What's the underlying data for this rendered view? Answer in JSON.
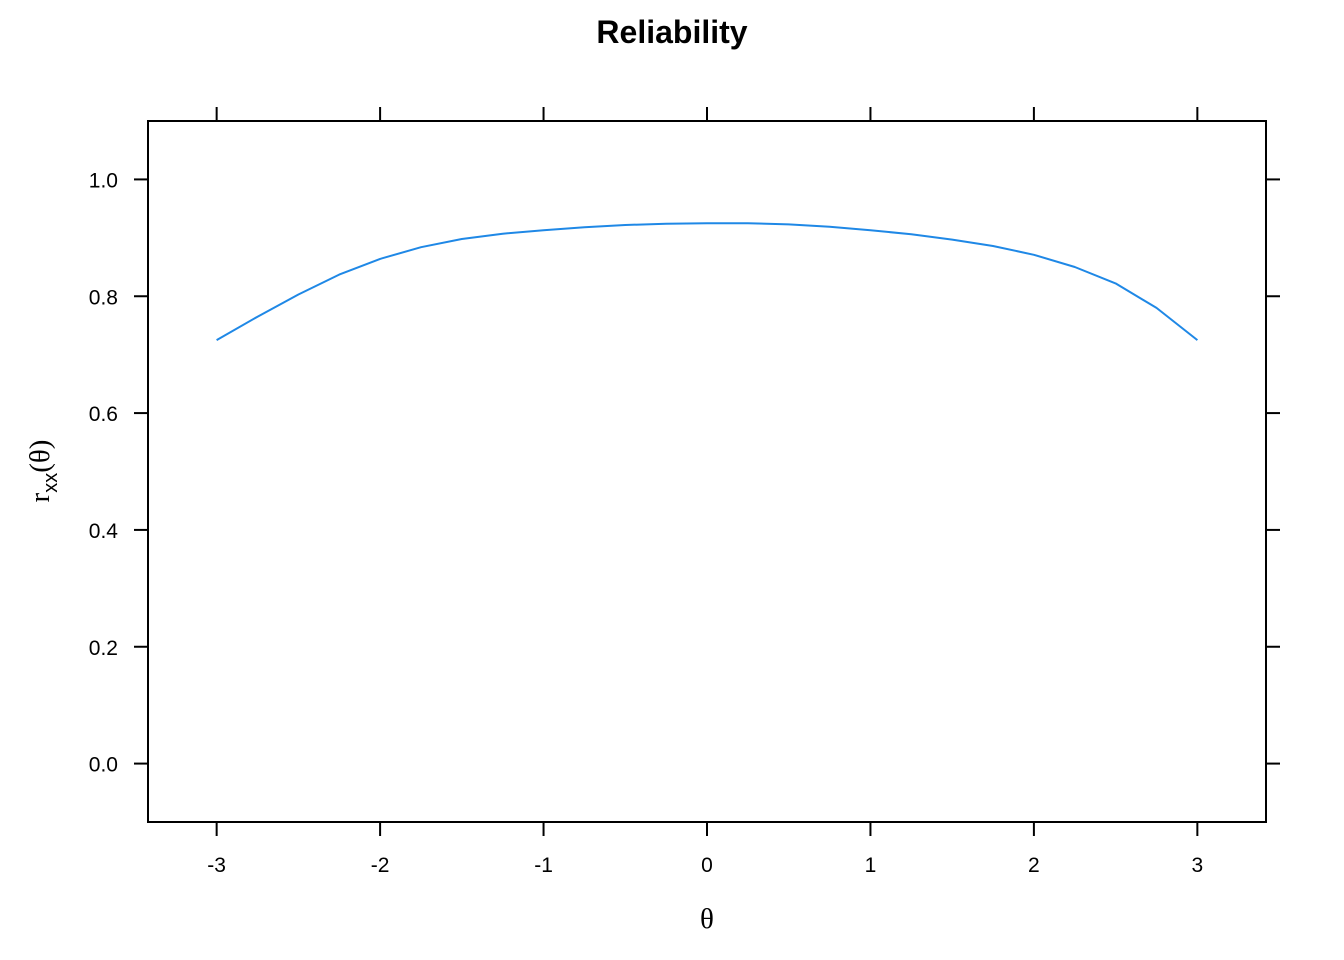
{
  "chart_data": {
    "type": "line",
    "title": "Reliability",
    "xlabel": "θ",
    "ylabel": {
      "base": "r",
      "subscript": "xx",
      "suffix": "(θ)"
    },
    "xlim": [
      -3.42,
      3.42
    ],
    "ylim": [
      -0.1,
      1.1
    ],
    "x_ticks": [
      -3,
      -2,
      -1,
      0,
      1,
      2,
      3
    ],
    "x_tick_labels": [
      "-3",
      "-2",
      "-1",
      "0",
      "1",
      "2",
      "3"
    ],
    "y_ticks": [
      0.0,
      0.2,
      0.4,
      0.6,
      0.8,
      1.0
    ],
    "y_tick_labels": [
      "0.0",
      "0.2",
      "0.4",
      "0.6",
      "0.8",
      "1.0"
    ],
    "grid": false,
    "series": [
      {
        "color": "#1f88e6",
        "x": [
          -3.0,
          -2.75,
          -2.5,
          -2.25,
          -2.0,
          -1.75,
          -1.5,
          -1.25,
          -1.0,
          -0.75,
          -0.5,
          -0.25,
          0.0,
          0.25,
          0.5,
          0.75,
          1.0,
          1.25,
          1.5,
          1.75,
          2.0,
          2.25,
          2.5,
          2.75,
          3.0
        ],
        "y": [
          0.725,
          0.765,
          0.803,
          0.837,
          0.864,
          0.884,
          0.898,
          0.907,
          0.913,
          0.918,
          0.922,
          0.924,
          0.925,
          0.925,
          0.923,
          0.919,
          0.913,
          0.906,
          0.897,
          0.886,
          0.871,
          0.85,
          0.822,
          0.78,
          0.725
        ]
      }
    ]
  }
}
